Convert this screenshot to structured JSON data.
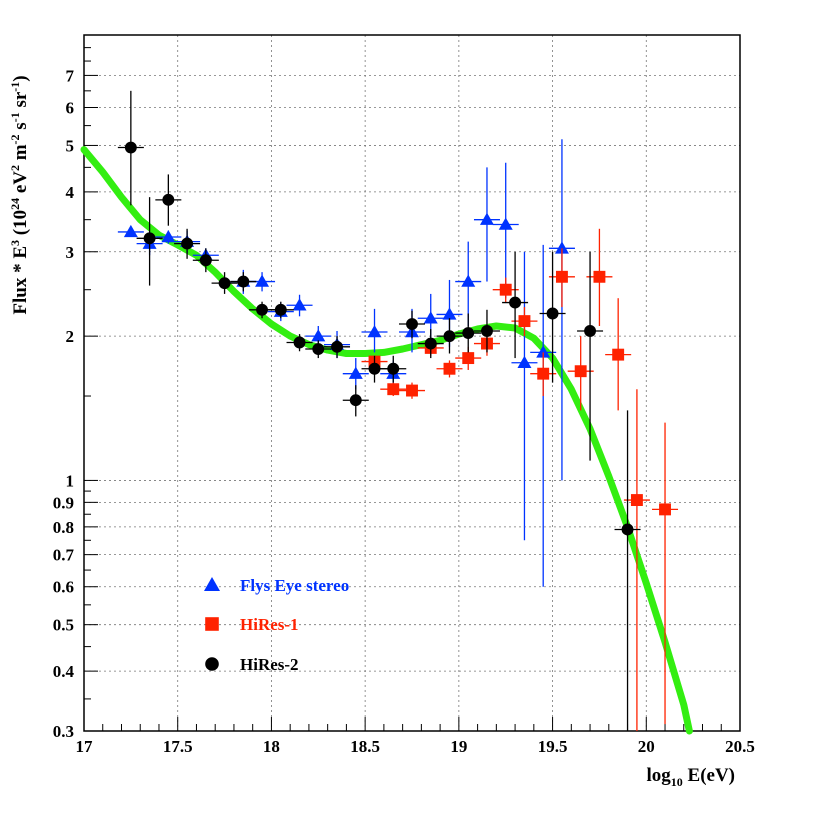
{
  "chart_data": {
    "type": "scatter",
    "title": "",
    "x_scale": "linear",
    "y_scale": "log",
    "xlim": [
      17,
      20.5
    ],
    "ylim": [
      0.3,
      8.5
    ],
    "grid": true,
    "legend_position": "bottom-left",
    "x_ticks": [
      "17",
      "17.5",
      "18",
      "18.5",
      "19",
      "19.5",
      "20",
      "20.5"
    ],
    "x_tick_values": [
      17,
      17.5,
      18,
      18.5,
      19,
      19.5,
      20,
      20.5
    ],
    "y_ticks": [
      "0.3",
      "0.4",
      "0.5",
      "0.6",
      "0.7",
      "0.8",
      "0.9",
      "1",
      "2",
      "3",
      "4",
      "5",
      "6",
      "7"
    ],
    "y_tick_values": [
      0.3,
      0.4,
      0.5,
      0.6,
      0.7,
      0.8,
      0.9,
      1,
      2,
      3,
      4,
      5,
      6,
      7
    ],
    "ylabel": {
      "base": "Flux * E",
      "sup1": "3",
      "mid1": " (10",
      "sup2": "24",
      "mid2": " eV",
      "sup3": "2",
      "mid3": " m",
      "sup4": "-2",
      "mid4": " s",
      "sup5": "-1",
      "mid5": " sr",
      "sup6": "-1",
      "end": ")"
    },
    "xlabel": {
      "pre": "log",
      "sub": "10",
      "post": " E(eV)"
    },
    "series": [
      {
        "name": "Flys Eye stereo",
        "marker": "triangle",
        "color": "#0033ff",
        "points": [
          {
            "x": 17.25,
            "y": 3.3,
            "lo": 3.26,
            "hi": 3.34
          },
          {
            "x": 17.35,
            "y": 3.12,
            "lo": 2.95,
            "hi": 3.3
          },
          {
            "x": 17.45,
            "y": 3.22,
            "lo": 3.12,
            "hi": 3.32
          },
          {
            "x": 17.55,
            "y": 3.15,
            "lo": 2.98,
            "hi": 3.32
          },
          {
            "x": 17.65,
            "y": 2.95,
            "lo": 2.85,
            "hi": 3.05
          },
          {
            "x": 17.85,
            "y": 2.6,
            "lo": 2.45,
            "hi": 2.75
          },
          {
            "x": 17.95,
            "y": 2.6,
            "lo": 2.48,
            "hi": 2.72
          },
          {
            "x": 18.05,
            "y": 2.25,
            "lo": 2.15,
            "hi": 2.35
          },
          {
            "x": 18.15,
            "y": 2.32,
            "lo": 2.2,
            "hi": 2.44
          },
          {
            "x": 18.25,
            "y": 2.0,
            "lo": 1.92,
            "hi": 2.1
          },
          {
            "x": 18.35,
            "y": 1.92,
            "lo": 1.8,
            "hi": 2.05
          },
          {
            "x": 18.45,
            "y": 1.67,
            "lo": 1.55,
            "hi": 1.8
          },
          {
            "x": 18.55,
            "y": 2.04,
            "lo": 1.85,
            "hi": 2.28
          },
          {
            "x": 18.65,
            "y": 1.67,
            "lo": 1.58,
            "hi": 1.78
          },
          {
            "x": 18.75,
            "y": 2.04,
            "lo": 1.85,
            "hi": 2.28
          },
          {
            "x": 18.85,
            "y": 2.18,
            "lo": 1.95,
            "hi": 2.45
          },
          {
            "x": 18.95,
            "y": 2.22,
            "lo": 1.9,
            "hi": 2.62
          },
          {
            "x": 19.05,
            "y": 2.6,
            "lo": 2.1,
            "hi": 3.15
          },
          {
            "x": 19.15,
            "y": 3.5,
            "lo": 2.6,
            "hi": 4.5
          },
          {
            "x": 19.25,
            "y": 3.42,
            "lo": 2.4,
            "hi": 4.6
          },
          {
            "x": 19.35,
            "y": 1.76,
            "lo": 0.75,
            "hi": 3.0
          },
          {
            "x": 19.45,
            "y": 1.85,
            "lo": 0.6,
            "hi": 3.1
          },
          {
            "x": 19.55,
            "y": 3.05,
            "lo": 1.0,
            "hi": 5.15
          }
        ]
      },
      {
        "name": "HiRes-1",
        "marker": "square",
        "color": "#ff2200",
        "points": [
          {
            "x": 18.55,
            "y": 1.77,
            "lo": 1.72,
            "hi": 1.82
          },
          {
            "x": 18.65,
            "y": 1.55,
            "lo": 1.5,
            "hi": 1.6
          },
          {
            "x": 18.75,
            "y": 1.54,
            "lo": 1.48,
            "hi": 1.6
          },
          {
            "x": 18.85,
            "y": 1.89,
            "lo": 1.82,
            "hi": 1.96
          },
          {
            "x": 18.95,
            "y": 1.71,
            "lo": 1.64,
            "hi": 1.78
          },
          {
            "x": 19.05,
            "y": 1.8,
            "lo": 1.7,
            "hi": 1.9
          },
          {
            "x": 19.15,
            "y": 1.93,
            "lo": 1.82,
            "hi": 2.05
          },
          {
            "x": 19.25,
            "y": 2.5,
            "lo": 2.35,
            "hi": 2.65
          },
          {
            "x": 19.35,
            "y": 2.15,
            "lo": 2.0,
            "hi": 2.3
          },
          {
            "x": 19.45,
            "y": 1.67,
            "lo": 1.5,
            "hi": 1.85
          },
          {
            "x": 19.55,
            "y": 2.66,
            "lo": 2.3,
            "hi": 3.05
          },
          {
            "x": 19.65,
            "y": 1.69,
            "lo": 1.4,
            "hi": 2.0
          },
          {
            "x": 19.75,
            "y": 2.66,
            "lo": 2.1,
            "hi": 3.35
          },
          {
            "x": 19.85,
            "y": 1.83,
            "lo": 1.4,
            "hi": 2.4
          },
          {
            "x": 19.95,
            "y": 0.91,
            "lo": 0.3,
            "hi": 1.55
          },
          {
            "x": 20.1,
            "y": 0.87,
            "lo": 0.31,
            "hi": 1.32
          }
        ]
      },
      {
        "name": "HiRes-2",
        "marker": "circle",
        "color": "#000000",
        "points": [
          {
            "x": 17.25,
            "y": 4.95,
            "lo": 3.75,
            "hi": 6.5
          },
          {
            "x": 17.35,
            "y": 3.2,
            "lo": 2.55,
            "hi": 3.9
          },
          {
            "x": 17.45,
            "y": 3.85,
            "lo": 3.4,
            "hi": 4.35
          },
          {
            "x": 17.55,
            "y": 3.12,
            "lo": 2.9,
            "hi": 3.35
          },
          {
            "x": 17.65,
            "y": 2.88,
            "lo": 2.72,
            "hi": 3.05
          },
          {
            "x": 17.75,
            "y": 2.58,
            "lo": 2.45,
            "hi": 2.72
          },
          {
            "x": 17.85,
            "y": 2.6,
            "lo": 2.48,
            "hi": 2.72
          },
          {
            "x": 17.95,
            "y": 2.27,
            "lo": 2.18,
            "hi": 2.36
          },
          {
            "x": 18.05,
            "y": 2.27,
            "lo": 2.18,
            "hi": 2.36
          },
          {
            "x": 18.15,
            "y": 1.94,
            "lo": 1.86,
            "hi": 2.02
          },
          {
            "x": 18.25,
            "y": 1.88,
            "lo": 1.8,
            "hi": 1.96
          },
          {
            "x": 18.35,
            "y": 1.9,
            "lo": 1.8,
            "hi": 2.0
          },
          {
            "x": 18.45,
            "y": 1.47,
            "lo": 1.36,
            "hi": 1.58
          },
          {
            "x": 18.55,
            "y": 1.71,
            "lo": 1.6,
            "hi": 1.82
          },
          {
            "x": 18.65,
            "y": 1.71,
            "lo": 1.6,
            "hi": 1.82
          },
          {
            "x": 18.75,
            "y": 2.12,
            "lo": 1.98,
            "hi": 2.26
          },
          {
            "x": 18.85,
            "y": 1.93,
            "lo": 1.8,
            "hi": 2.07
          },
          {
            "x": 18.95,
            "y": 2.0,
            "lo": 1.84,
            "hi": 2.18
          },
          {
            "x": 19.05,
            "y": 2.03,
            "lo": 1.85,
            "hi": 2.23
          },
          {
            "x": 19.15,
            "y": 2.05,
            "lo": 1.85,
            "hi": 2.27
          },
          {
            "x": 19.3,
            "y": 2.35,
            "lo": 1.8,
            "hi": 3.0
          },
          {
            "x": 19.5,
            "y": 2.23,
            "lo": 1.6,
            "hi": 3.0
          },
          {
            "x": 19.7,
            "y": 2.05,
            "lo": 1.1,
            "hi": 3.0
          },
          {
            "x": 19.9,
            "y": 0.79,
            "lo": 0.3,
            "hi": 1.4
          }
        ]
      }
    ],
    "fit_curve": {
      "color": "#33ee11",
      "points": [
        [
          17.0,
          4.9
        ],
        [
          17.1,
          4.4
        ],
        [
          17.2,
          3.9
        ],
        [
          17.3,
          3.5
        ],
        [
          17.4,
          3.25
        ],
        [
          17.5,
          3.1
        ],
        [
          17.6,
          2.95
        ],
        [
          17.7,
          2.72
        ],
        [
          17.8,
          2.48
        ],
        [
          17.9,
          2.28
        ],
        [
          18.0,
          2.12
        ],
        [
          18.1,
          2.0
        ],
        [
          18.2,
          1.92
        ],
        [
          18.3,
          1.87
        ],
        [
          18.4,
          1.84
        ],
        [
          18.5,
          1.84
        ],
        [
          18.6,
          1.85
        ],
        [
          18.7,
          1.88
        ],
        [
          18.8,
          1.92
        ],
        [
          18.9,
          1.96
        ],
        [
          19.0,
          2.02
        ],
        [
          19.1,
          2.07
        ],
        [
          19.2,
          2.1
        ],
        [
          19.3,
          2.08
        ],
        [
          19.4,
          1.98
        ],
        [
          19.5,
          1.8
        ],
        [
          19.6,
          1.55
        ],
        [
          19.7,
          1.28
        ],
        [
          19.8,
          1.02
        ],
        [
          19.9,
          0.8
        ],
        [
          20.0,
          0.61
        ],
        [
          20.1,
          0.46
        ],
        [
          20.2,
          0.34
        ],
        [
          20.23,
          0.3
        ]
      ]
    }
  }
}
